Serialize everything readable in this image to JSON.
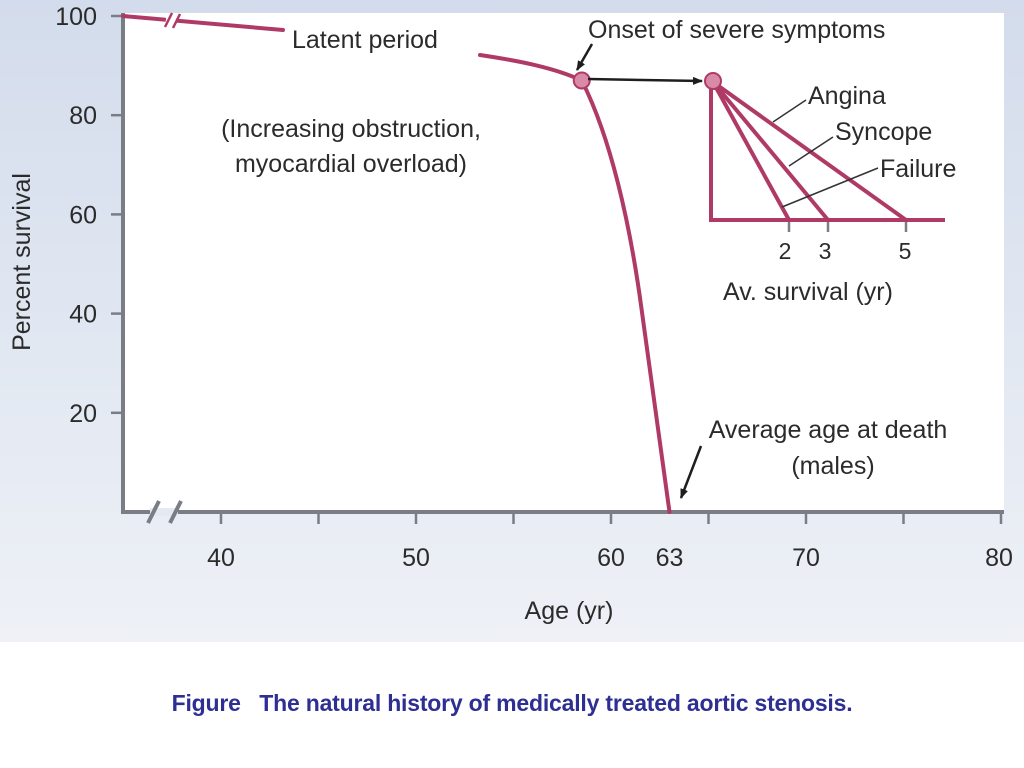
{
  "chart_data": {
    "type": "line",
    "title": "",
    "xlabel": "Age (yr)",
    "ylabel": "Percent survival",
    "xlim": [
      35,
      80
    ],
    "ylim": [
      0,
      100
    ],
    "x_ticks": [
      40,
      45,
      50,
      55,
      60,
      65,
      70,
      75,
      80
    ],
    "x_tick_labels": [
      "40",
      "50",
      "60",
      "63",
      "70",
      "80"
    ],
    "x_tick_label_values": [
      40,
      50,
      60,
      63,
      70,
      80
    ],
    "y_ticks": [
      20,
      40,
      60,
      80,
      100
    ],
    "y_tick_labels": [
      "20",
      "40",
      "60",
      "80",
      "100"
    ],
    "axis_breaks": [
      "x-axis near origin",
      "latent-period curve"
    ],
    "grid": false,
    "series": [
      {
        "name": "Survival curve (medically treated aortic stenosis)",
        "color": "#b03a66",
        "points": [
          {
            "x": 35,
            "y": 100
          },
          {
            "x": 43,
            "y": 97
          },
          {
            "x": 53,
            "y": 92
          },
          {
            "x": 56,
            "y": 90
          },
          {
            "x": 58.5,
            "y": 87
          },
          {
            "x": 59.5,
            "y": 80
          },
          {
            "x": 60.5,
            "y": 68
          },
          {
            "x": 61.3,
            "y": 50
          },
          {
            "x": 62,
            "y": 30
          },
          {
            "x": 62.5,
            "y": 15
          },
          {
            "x": 63,
            "y": 0
          }
        ]
      }
    ],
    "markers": [
      {
        "name": "onset-of-severe-symptoms",
        "x": 58.5,
        "y": 87
      }
    ],
    "inset": {
      "title": "Av. survival (yr)",
      "baseline_survival": 60,
      "start_survival": 87,
      "x_ticks": [
        2,
        3,
        5
      ],
      "lines": [
        {
          "name": "Angina",
          "av_survival_yr": 5
        },
        {
          "name": "Syncope",
          "av_survival_yr": 3
        },
        {
          "name": "Failure",
          "av_survival_yr": 2
        }
      ]
    },
    "annotations": [
      "Latent period",
      "(Increasing obstruction,",
      "myocardial overload)",
      "Onset of severe symptoms",
      "Average age at death",
      "(males)"
    ]
  },
  "labels": {
    "latent": "Latent period",
    "obstruction_line1": "(Increasing obstruction,",
    "obstruction_line2": "myocardial overload)",
    "onset": "Onset of severe symptoms",
    "death_line1": "Average age at death",
    "death_line2": "(males)",
    "angina": "Angina",
    "syncope": "Syncope",
    "failure": "Failure",
    "inset_xlabel": "Av. survival (yr)",
    "inset_tick_2": "2",
    "inset_tick_3": "3",
    "inset_tick_5": "5"
  },
  "caption": "Figure   The natural history of medically treated aortic stenosis.",
  "colors": {
    "curve": "#b03a66",
    "marker_fill": "#d98aa6",
    "axis": "#7b7d86",
    "caption": "#2e2f93"
  }
}
